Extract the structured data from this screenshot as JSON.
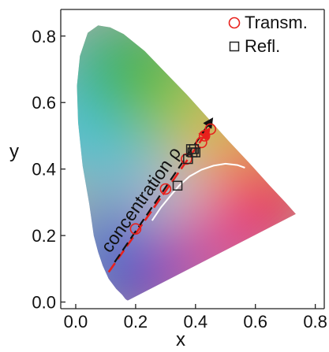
{
  "chart_data": {
    "type": "scatter",
    "title": "",
    "xlabel": "x",
    "ylabel": "y",
    "xlim": [
      -0.05,
      0.83
    ],
    "ylim": [
      -0.02,
      0.88
    ],
    "x_ticks": [
      "0.0",
      "0.2",
      "0.4",
      "0.6",
      "0.8"
    ],
    "x_tick_values": [
      0.0,
      0.2,
      0.4,
      0.6,
      0.8
    ],
    "y_ticks": [
      "0.0",
      "0.2",
      "0.4",
      "0.6",
      "0.8"
    ],
    "y_tick_values": [
      0.0,
      0.2,
      0.4,
      0.6,
      0.8
    ],
    "background": "CIE 1931 chromaticity diagram",
    "legend_position": "top-right",
    "series": [
      {
        "name": "Transm.",
        "marker": "circle",
        "color": "#e8201c",
        "points": [
          {
            "x": 0.2,
            "y": 0.22
          },
          {
            "x": 0.3,
            "y": 0.34
          },
          {
            "x": 0.37,
            "y": 0.43
          },
          {
            "x": 0.42,
            "y": 0.48
          },
          {
            "x": 0.43,
            "y": 0.5
          },
          {
            "x": 0.45,
            "y": 0.52
          }
        ]
      },
      {
        "name": "Refl.",
        "marker": "square",
        "color": "#222222",
        "points": [
          {
            "x": 0.34,
            "y": 0.35
          },
          {
            "x": 0.375,
            "y": 0.43
          },
          {
            "x": 0.385,
            "y": 0.46
          },
          {
            "x": 0.395,
            "y": 0.46
          },
          {
            "x": 0.39,
            "y": 0.45
          },
          {
            "x": 0.4,
            "y": 0.45
          }
        ]
      }
    ],
    "annotations": [
      {
        "text": "concentration ρ",
        "color": "#111111"
      }
    ],
    "colors": {
      "transm": "#e8201c",
      "refl": "#222222",
      "trend_red": "#e8201c",
      "trend_black": "#111111",
      "planckian": "#ffffff"
    }
  }
}
